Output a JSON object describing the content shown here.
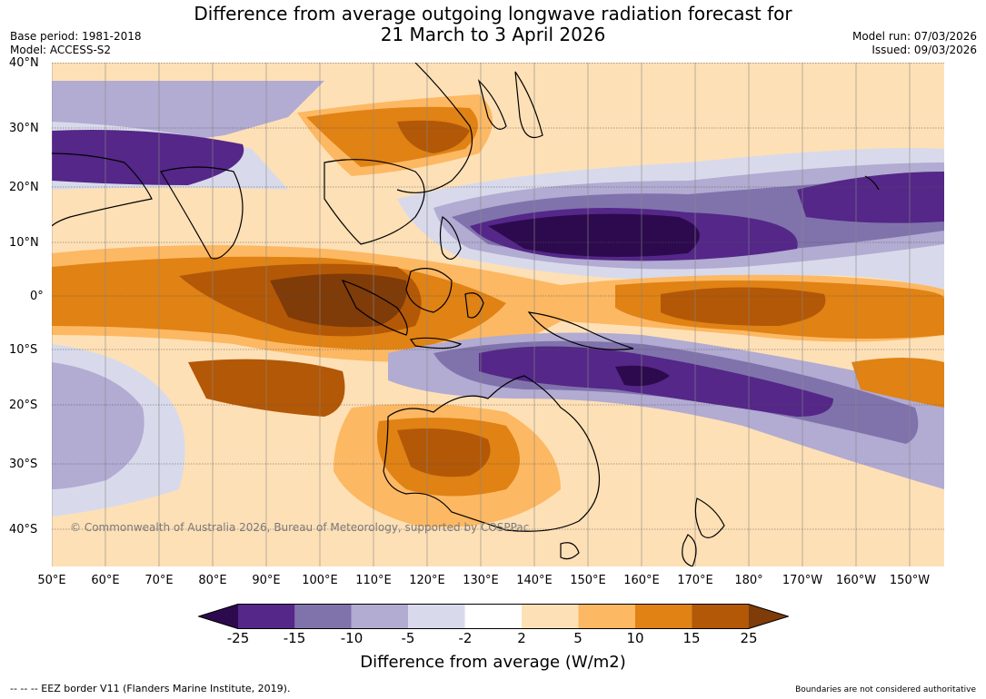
{
  "header": {
    "title_line1": "Difference from average outgoing longwave radiation forecast for",
    "title_line2": "21 March to 3 April 2026",
    "base_period": "Base period: 1981-2018",
    "model": "Model: ACCESS-S2",
    "model_run": "Model run: 07/03/2026",
    "issued": "Issued: 09/03/2026"
  },
  "map": {
    "lat_labels": [
      "40°N",
      "30°N",
      "20°N",
      "10°N",
      "0°",
      "10°S",
      "20°S",
      "30°S",
      "40°S"
    ],
    "lon_labels": [
      "50°E",
      "60°E",
      "70°E",
      "80°E",
      "90°E",
      "100°E",
      "110°E",
      "120°E",
      "130°E",
      "140°E",
      "150°E",
      "160°E",
      "170°E",
      "180°",
      "170°W",
      "160°W",
      "150°W"
    ],
    "credit": "© Commonwealth of Australia 2026, Bureau of Meteorology, supported by COSPPac"
  },
  "colorbar": {
    "ticks": [
      "-25",
      "-15",
      "-10",
      "-5",
      "-2",
      "2",
      "5",
      "10",
      "15",
      "25"
    ],
    "label": "Difference from average (W/m2)",
    "colors": [
      "#2d0a4e",
      "#542788",
      "#8073ac",
      "#b2abd2",
      "#d8daeb",
      "#ffffff",
      "#fee0b6",
      "#fdb863",
      "#e08214",
      "#b35806",
      "#7f3b08"
    ]
  },
  "footer": {
    "eez": "--  --  -- EEZ border V11 (Flanders Marine Institute, 2019).",
    "boundaries": "Boundaries are not considered authoritative"
  }
}
